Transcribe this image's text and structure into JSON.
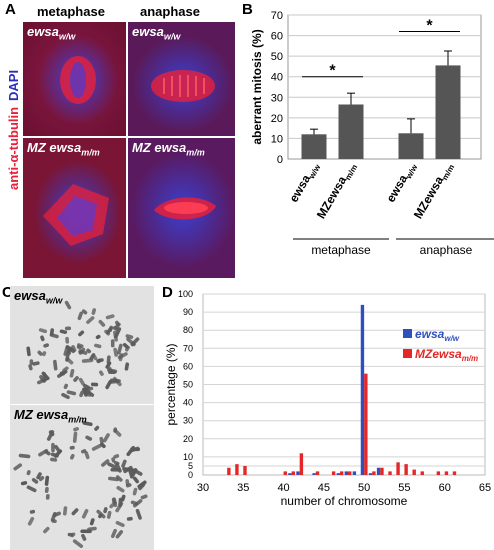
{
  "panelA": {
    "letter": "A",
    "columns": [
      "metaphase",
      "anaphase"
    ],
    "side_label_antibody": "anti-α-tubulin",
    "side_label_dapi": "DAPI",
    "tiles": [
      {
        "label_main": "ewsa",
        "label_sub": "w/w"
      },
      {
        "label_main": "ewsa",
        "label_sub": "w/w"
      },
      {
        "label_main": "MZ ewsa",
        "label_sub": "m/m"
      },
      {
        "label_main": "MZ ewsa",
        "label_sub": "m/m"
      }
    ],
    "colors": {
      "tubulin": "#e8203a",
      "dapi": "#2a2fb8",
      "background": "#7a1530"
    }
  },
  "panelB": {
    "letter": "B",
    "chart_data": {
      "type": "bar",
      "ylabel": "aberrant mitosis (%)",
      "ylim": [
        0,
        70
      ],
      "yticks": [
        0,
        10,
        20,
        30,
        40,
        50,
        60,
        70
      ],
      "categories": [
        "ewsaw/w",
        "MZewsam/m",
        "ewsaw/w",
        "MZewsam/m"
      ],
      "category_labels": [
        {
          "main": "ewsa",
          "sub": "w/w"
        },
        {
          "main": "MZewsa",
          "sub": "m/m"
        },
        {
          "main": "ewsa",
          "sub": "w/w"
        },
        {
          "main": "MZewsa",
          "sub": "m/m"
        }
      ],
      "groups": [
        "metaphase",
        "anaphase"
      ],
      "values": [
        12,
        26.5,
        12.5,
        45.5
      ],
      "errors": [
        2.5,
        5.5,
        7,
        7
      ],
      "significance": [
        "*",
        "*"
      ],
      "bar_color": "#555555",
      "grid": true
    }
  },
  "panelC": {
    "letter": "C",
    "tiles": [
      {
        "label_main": "ewsa",
        "label_sub": "w/w"
      },
      {
        "label_main": "MZ ewsa",
        "label_sub": "m/m"
      }
    ]
  },
  "panelD": {
    "letter": "D",
    "chart_data": {
      "type": "bar",
      "xlabel": "number of chromosome",
      "ylabel": "percentage (%)",
      "xlim": [
        30,
        65
      ],
      "ylim": [
        0,
        100
      ],
      "xticks": [
        30,
        35,
        40,
        45,
        50,
        55,
        60,
        65
      ],
      "yticks": [
        0,
        5,
        10,
        20,
        30,
        40,
        50,
        60,
        70,
        80,
        90,
        100
      ],
      "grid": true,
      "legend_position": "right",
      "series": [
        {
          "name_main": "ewsa",
          "name_sub": "w/w",
          "color": "#2f4fbf",
          "x": [
            41,
            42,
            44,
            47,
            48,
            49,
            50,
            51,
            52
          ],
          "values": [
            1,
            2,
            1,
            1,
            2,
            2,
            94,
            1,
            4
          ]
        },
        {
          "name_main": "MZewsa",
          "name_sub": "m/m",
          "color": "#e42828",
          "x": [
            33,
            34,
            35,
            40,
            41,
            42,
            44,
            46,
            47,
            48,
            50,
            51,
            52,
            53,
            54,
            55,
            56,
            57,
            59,
            60,
            61
          ],
          "values": [
            4,
            6,
            5,
            2,
            2,
            12,
            2,
            2,
            2,
            2,
            56,
            2,
            4,
            2,
            7,
            6,
            3,
            2,
            2,
            2,
            2
          ]
        }
      ]
    }
  }
}
